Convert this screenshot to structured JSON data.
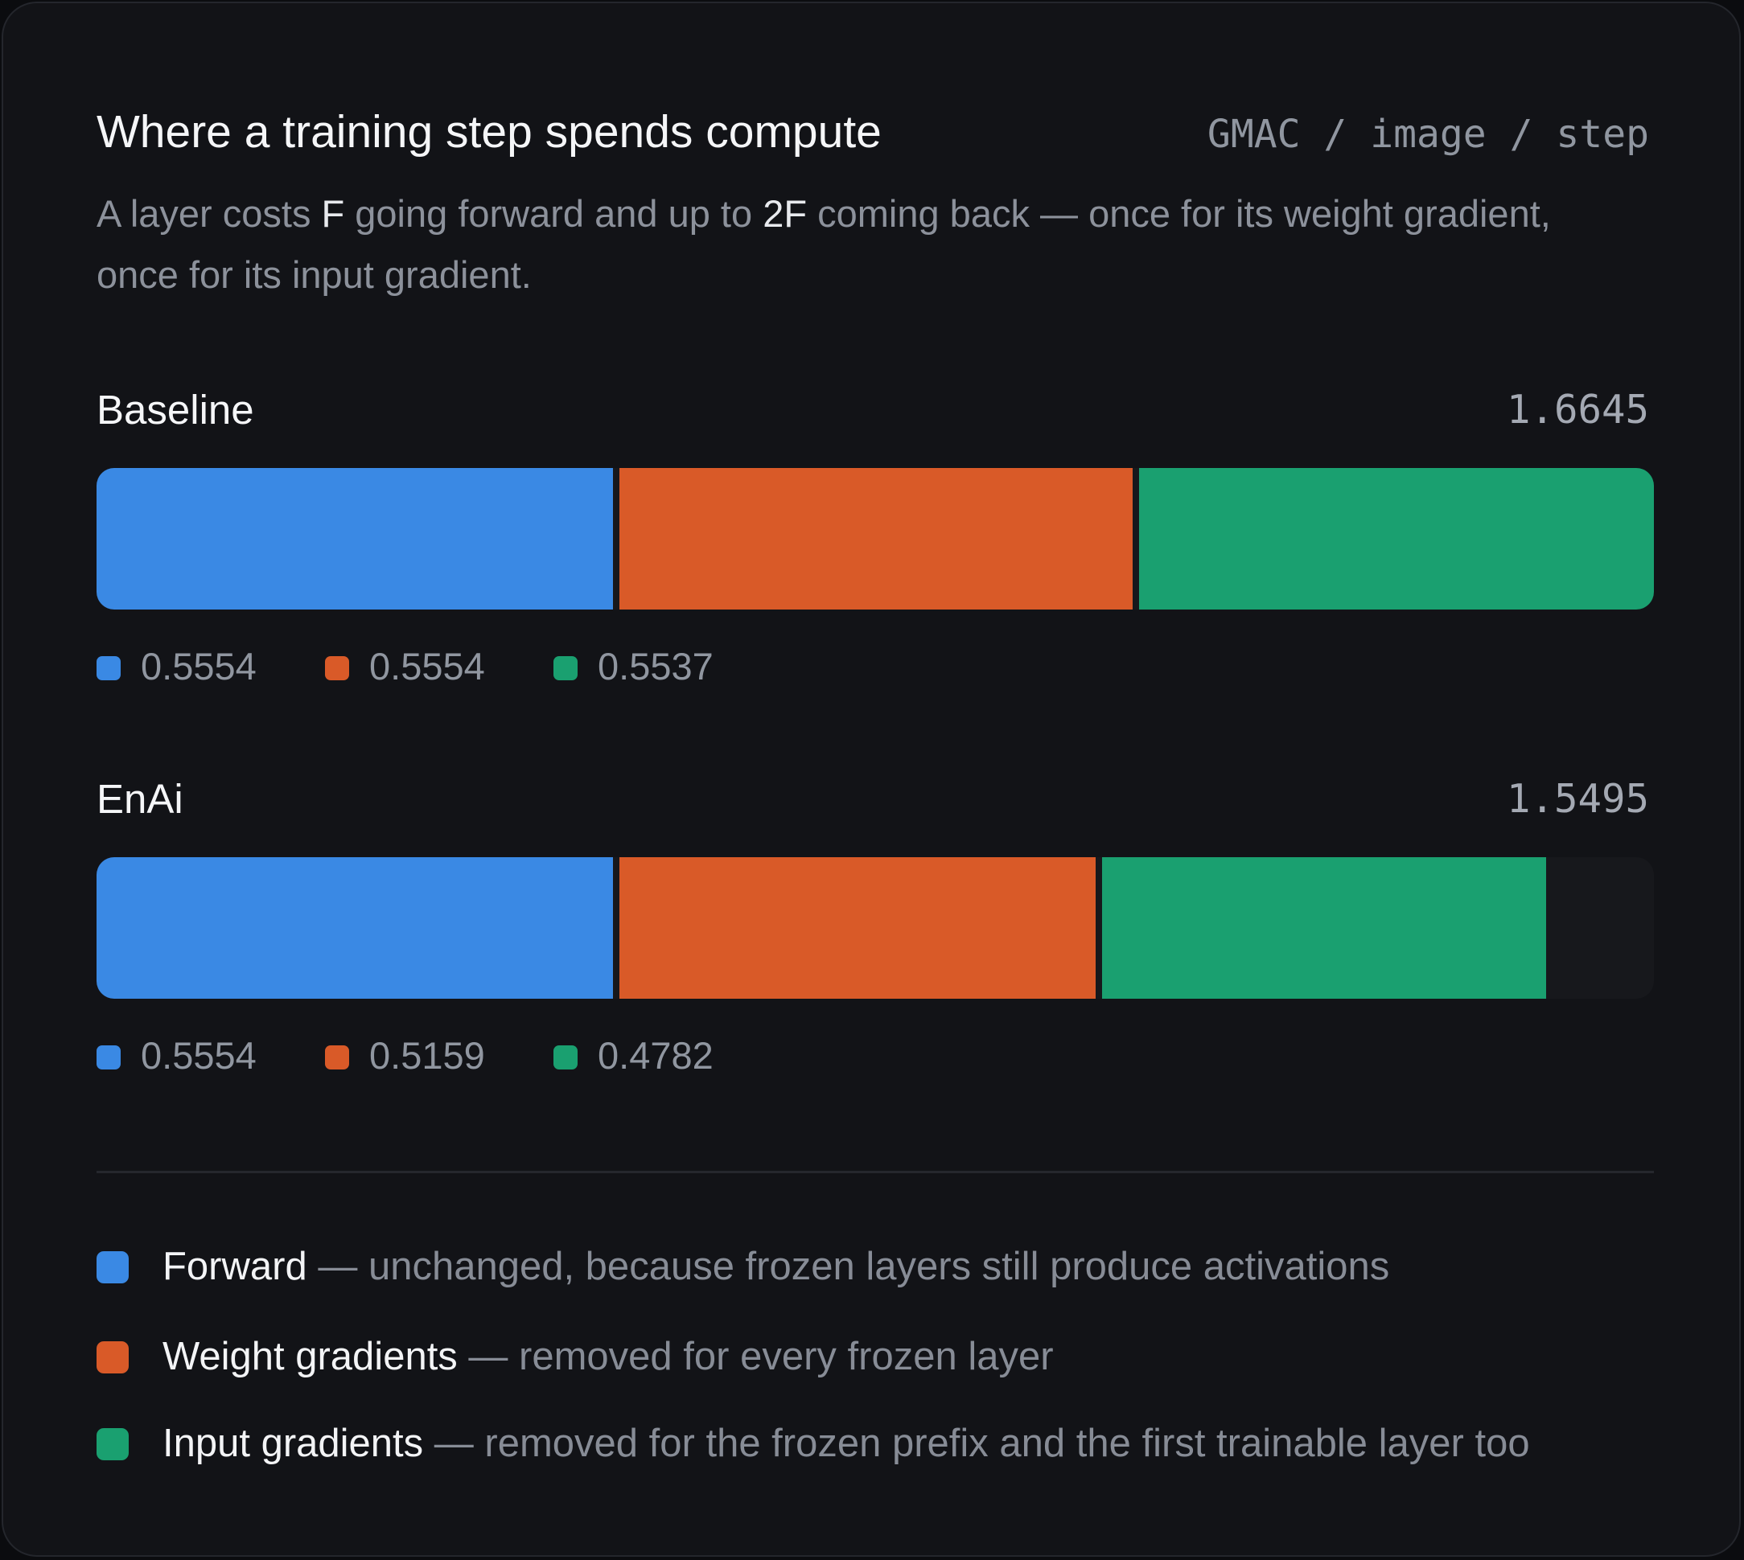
{
  "title": "Where a training step spends compute",
  "unit": "GMAC / image / step",
  "subtitle": {
    "p1": "A layer costs ",
    "f": "F",
    "p2": " going forward and up to ",
    "f2": "2F",
    "p3": " coming back — once for its weight gradient, once for its input gradient."
  },
  "colors": {
    "forward": "#3a89e4",
    "weight": "#d95a28",
    "input": "#1aa070",
    "track": "#17181c"
  },
  "chart_data": {
    "type": "bar",
    "orientation": "horizontal-stacked",
    "scale_max": 1.6645,
    "categories": [
      "Baseline",
      "EnAi"
    ],
    "totals": [
      "1.6645",
      "1.5495"
    ],
    "series": [
      {
        "name": "Forward",
        "values": [
          0.5554,
          0.5554
        ],
        "labels": [
          "0.5554",
          "0.5554"
        ]
      },
      {
        "name": "Weight gradients",
        "values": [
          0.5554,
          0.5159
        ],
        "labels": [
          "0.5554",
          "0.5159"
        ]
      },
      {
        "name": "Input gradients",
        "values": [
          0.5537,
          0.4782
        ],
        "labels": [
          "0.5537",
          "0.4782"
        ]
      }
    ]
  },
  "legend": [
    {
      "name": "Forward",
      "desc": " — unchanged, because frozen layers still produce activations"
    },
    {
      "name": "Weight gradients",
      "desc": " — removed for every frozen layer"
    },
    {
      "name": "Input gradients",
      "desc": " — removed for the frozen prefix and the first trainable layer too"
    }
  ]
}
